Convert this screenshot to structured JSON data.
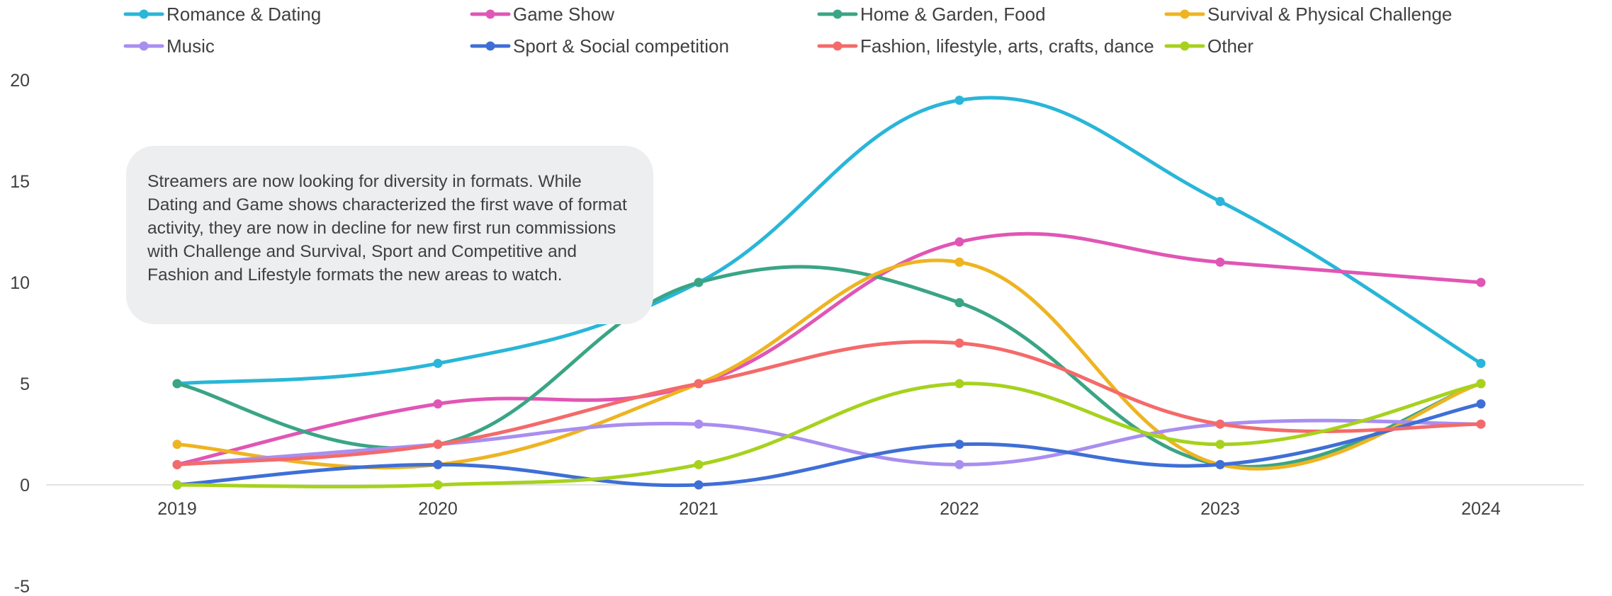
{
  "chart_data": {
    "type": "line",
    "smooth": true,
    "title": "",
    "xlabel": "",
    "ylabel": "",
    "categories": [
      "2019",
      "2020",
      "2021",
      "2022",
      "2023",
      "2024"
    ],
    "ylim": [
      -5,
      20
    ],
    "yticks": [
      -5,
      0,
      5,
      10,
      15,
      20
    ],
    "legend_position": "top",
    "series": [
      {
        "name": "Romance & Dating",
        "color": "#29b6d8",
        "values": [
          5,
          6,
          10,
          19,
          14,
          6
        ]
      },
      {
        "name": "Game Show",
        "color": "#e056b5",
        "values": [
          1,
          4,
          5,
          12,
          11,
          10
        ]
      },
      {
        "name": "Home & Garden, Food",
        "color": "#3aa585",
        "values": [
          5,
          2,
          10,
          9,
          1,
          5
        ]
      },
      {
        "name": "Survival & Physical Challenge",
        "color": "#eeb421",
        "values": [
          2,
          1,
          5,
          11,
          1,
          5
        ]
      },
      {
        "name": "Music",
        "color": "#a98ef0",
        "values": [
          1,
          2,
          3,
          1,
          3,
          3
        ]
      },
      {
        "name": "Sport & Social competition",
        "color": "#3f6fd6",
        "values": [
          0,
          1,
          0,
          2,
          1,
          4
        ]
      },
      {
        "name": "Fashion, lifestyle, arts, crafts, dance",
        "color": "#f46a6a",
        "values": [
          1,
          2,
          5,
          7,
          3,
          3
        ]
      },
      {
        "name": "Other",
        "color": "#a6d21d",
        "values": [
          0,
          0,
          1,
          5,
          2,
          5
        ]
      }
    ]
  },
  "annotation": "Streamers are now looking for diversity in formats. While Dating and Game shows characterized the first wave of format activity, they are now in decline for new first run commissions with Challenge and Survival, Sport and Competitive and Fashion and Lifestyle formats the new areas to watch."
}
